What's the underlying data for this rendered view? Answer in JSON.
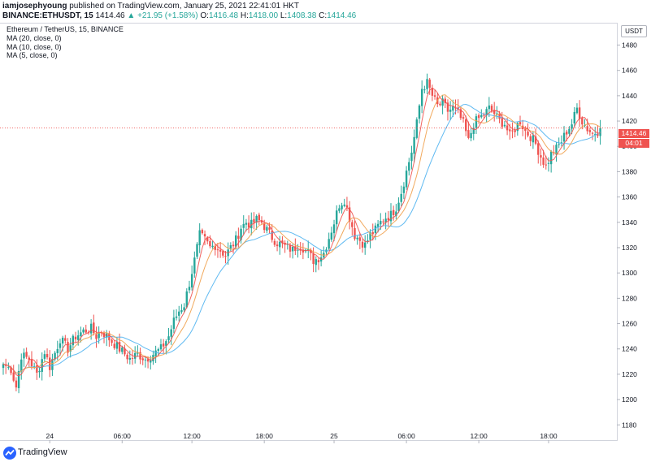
{
  "header": {
    "user": "iamjosephyoung",
    "published_text": "published on TradingView.com, January 25, 2021 22:41:01 HKT",
    "symbol_line": "BINANCE:ETHUSDT, 15",
    "last": "1414.46",
    "change": "▲ +21.95 (+1.58%)",
    "o_label": "O:",
    "o_val": "1416.48",
    "h_label": "H:",
    "h_val": "1418.00",
    "l_label": "L:",
    "l_val": "1408.38",
    "c_label": "C:",
    "c_val": "1414.46"
  },
  "legend": {
    "title": "Ethereum / TetherUS, 15, BINANCE",
    "ma20": "MA (20, close, 0)",
    "ma10": "MA (10, close, 0)",
    "ma5": "MA (5, close, 0)"
  },
  "price_axis": {
    "currency": "USDT",
    "last_price_tag": "1414.46",
    "countdown": "04:01"
  },
  "footer": {
    "brand": "TradingView"
  },
  "colors": {
    "up": "#26a69a",
    "down": "#ef5350",
    "ma20": "#4fb3f0",
    "ma10": "#f0a04b",
    "ma5": "#ef5350"
  },
  "chart_data": {
    "type": "candlestick",
    "title": "Ethereum / TetherUS, 15, BINANCE",
    "ylim": [
      1168,
      1497
    ],
    "yticks": [
      1180,
      1200,
      1220,
      1240,
      1260,
      1280,
      1300,
      1320,
      1340,
      1360,
      1380,
      1400,
      1420,
      1440,
      1460,
      1480
    ],
    "xticks": [
      "24",
      "06:00",
      "12:00",
      "18:00",
      "25",
      "06:00",
      "12:00",
      "18:00"
    ],
    "last_price": 1414.46,
    "anchors": [
      [
        0,
        1228
      ],
      [
        3,
        1224
      ],
      [
        5,
        1210
      ],
      [
        7,
        1235
      ],
      [
        10,
        1232
      ],
      [
        13,
        1220
      ],
      [
        16,
        1238
      ],
      [
        18,
        1226
      ],
      [
        22,
        1248
      ],
      [
        25,
        1240
      ],
      [
        28,
        1250
      ],
      [
        31,
        1254
      ],
      [
        34,
        1256
      ],
      [
        36,
        1250
      ],
      [
        38,
        1254
      ],
      [
        40,
        1250
      ],
      [
        43,
        1244
      ],
      [
        46,
        1238
      ],
      [
        49,
        1232
      ],
      [
        52,
        1236
      ],
      [
        55,
        1232
      ],
      [
        58,
        1236
      ],
      [
        61,
        1240
      ],
      [
        64,
        1250
      ],
      [
        66,
        1262
      ],
      [
        68,
        1270
      ],
      [
        70,
        1275
      ],
      [
        72,
        1292
      ],
      [
        74,
        1310
      ],
      [
        76,
        1330
      ],
      [
        78,
        1326
      ],
      [
        80,
        1320
      ],
      [
        82,
        1322
      ],
      [
        84,
        1318
      ],
      [
        86,
        1314
      ],
      [
        88,
        1320
      ],
      [
        90,
        1326
      ],
      [
        92,
        1336
      ],
      [
        94,
        1340
      ],
      [
        96,
        1338
      ],
      [
        98,
        1342
      ],
      [
        100,
        1340
      ],
      [
        102,
        1334
      ],
      [
        104,
        1328
      ],
      [
        106,
        1324
      ],
      [
        108,
        1322
      ],
      [
        110,
        1320
      ],
      [
        112,
        1318
      ],
      [
        114,
        1322
      ],
      [
        116,
        1320
      ],
      [
        118,
        1316
      ],
      [
        120,
        1310
      ],
      [
        122,
        1312
      ],
      [
        124,
        1316
      ],
      [
        126,
        1328
      ],
      [
        128,
        1340
      ],
      [
        130,
        1354
      ],
      [
        132,
        1358
      ],
      [
        134,
        1344
      ],
      [
        136,
        1330
      ],
      [
        138,
        1326
      ],
      [
        140,
        1322
      ],
      [
        142,
        1330
      ],
      [
        144,
        1334
      ],
      [
        146,
        1340
      ],
      [
        148,
        1344
      ],
      [
        150,
        1346
      ],
      [
        152,
        1352
      ],
      [
        154,
        1364
      ],
      [
        156,
        1380
      ],
      [
        158,
        1396
      ],
      [
        160,
        1418
      ],
      [
        162,
        1446
      ],
      [
        164,
        1450
      ],
      [
        166,
        1440
      ],
      [
        168,
        1432
      ],
      [
        170,
        1434
      ],
      [
        172,
        1428
      ],
      [
        174,
        1430
      ],
      [
        176,
        1426
      ],
      [
        178,
        1418
      ],
      [
        180,
        1404
      ],
      [
        182,
        1418
      ],
      [
        184,
        1422
      ],
      [
        186,
        1425
      ],
      [
        188,
        1430
      ],
      [
        190,
        1426
      ],
      [
        192,
        1420
      ],
      [
        194,
        1418
      ],
      [
        196,
        1408
      ],
      [
        198,
        1414
      ],
      [
        200,
        1420
      ],
      [
        202,
        1412
      ],
      [
        204,
        1408
      ],
      [
        206,
        1402
      ],
      [
        208,
        1392
      ],
      [
        210,
        1384
      ],
      [
        212,
        1394
      ],
      [
        214,
        1398
      ],
      [
        216,
        1404
      ],
      [
        218,
        1412
      ],
      [
        220,
        1418
      ],
      [
        222,
        1430
      ],
      [
        224,
        1420
      ],
      [
        226,
        1414
      ],
      [
        228,
        1410
      ],
      [
        230,
        1412
      ],
      [
        231,
        1414.46
      ]
    ]
  }
}
